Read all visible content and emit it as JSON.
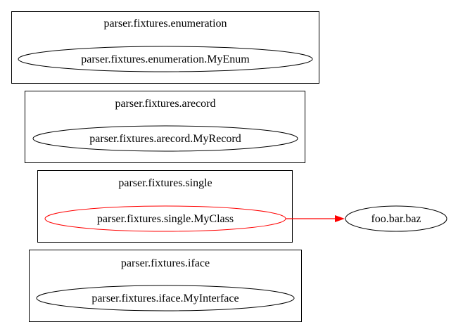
{
  "clusters": [
    {
      "label": "parser.fixtures.enumeration",
      "node": {
        "label": "parser.fixtures.enumeration.MyEnum",
        "stroke": "#000000"
      }
    },
    {
      "label": "parser.fixtures.arecord",
      "node": {
        "label": "parser.fixtures.arecord.MyRecord",
        "stroke": "#000000"
      }
    },
    {
      "label": "parser.fixtures.single",
      "node": {
        "label": "parser.fixtures.single.MyClass",
        "stroke": "#ff0000"
      }
    },
    {
      "label": "parser.fixtures.iface",
      "node": {
        "label": "parser.fixtures.iface.MyInterface",
        "stroke": "#000000"
      }
    }
  ],
  "external_nodes": [
    {
      "label": "foo.bar.baz",
      "stroke": "#000000"
    }
  ],
  "edges": [
    {
      "from": "parser.fixtures.single.MyClass",
      "to": "foo.bar.baz",
      "color": "#ff0000"
    }
  ]
}
